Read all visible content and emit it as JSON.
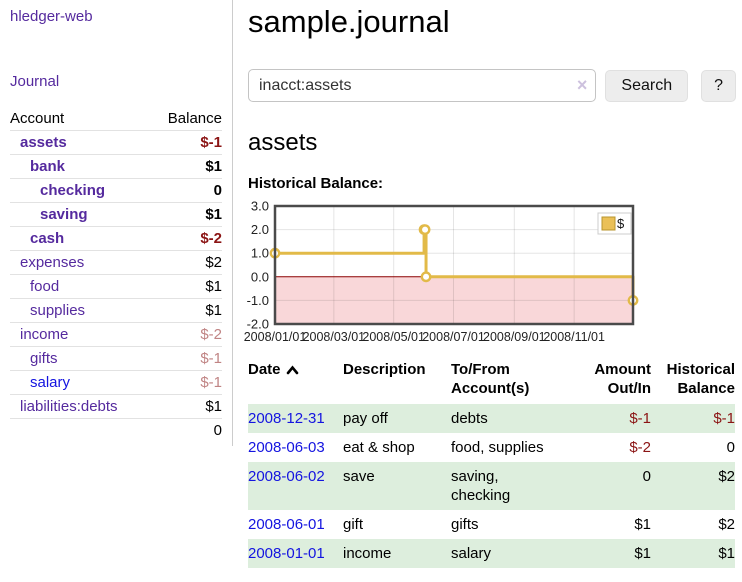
{
  "colors": {
    "link_purple": "#552a9e",
    "link_blue": "#1414e0",
    "negative": "#8b1414",
    "negative_dim": "#c08484",
    "row_stripe_green": "#ddeedd",
    "button_bg": "#ededed"
  },
  "sidebar": {
    "brand": "hledger-web",
    "journal_link": "Journal",
    "accounts_table": {
      "header_account": "Account",
      "header_balance": "Balance",
      "rows": [
        {
          "name": "assets",
          "balance": "$-1"
        },
        {
          "name": "bank",
          "balance": "$1"
        },
        {
          "name": "checking",
          "balance": "0"
        },
        {
          "name": "saving",
          "balance": "$1"
        },
        {
          "name": "cash",
          "balance": "$-2"
        },
        {
          "name": "expenses",
          "balance": "$2"
        },
        {
          "name": "food",
          "balance": "$1"
        },
        {
          "name": "supplies",
          "balance": "$1"
        },
        {
          "name": "income",
          "balance": "$-2"
        },
        {
          "name": "gifts",
          "balance": "$-1"
        },
        {
          "name": "salary",
          "balance": "$-1"
        },
        {
          "name": "liabilities:debts",
          "balance": "$1"
        }
      ],
      "total": "0"
    }
  },
  "main": {
    "title": "sample.journal",
    "search": {
      "value": "inacct:assets",
      "clear_icon": "×",
      "button_label": "Search",
      "help_label": "?"
    },
    "account_heading": "assets",
    "section_label": "Historical Balance:",
    "register": {
      "headers": {
        "date": "Date",
        "description": "Description",
        "tofrom": "To/From Account(s)",
        "amount": "Amount Out/In",
        "balance": "Historical Balance"
      },
      "rows": [
        {
          "date": "2008-12-31",
          "description": "pay off",
          "tofrom": "debts",
          "amount": "$-1",
          "balance": "$-1"
        },
        {
          "date": "2008-06-03",
          "description": "eat & shop",
          "tofrom": "food, supplies",
          "amount": "$-2",
          "balance": "0"
        },
        {
          "date": "2008-06-02",
          "description": "save",
          "tofrom": "saving,\nchecking",
          "amount": "0",
          "balance": "$2"
        },
        {
          "date": "2008-06-01",
          "description": "gift",
          "tofrom": "gifts",
          "amount": "$1",
          "balance": "$2"
        },
        {
          "date": "2008-01-01",
          "description": "income",
          "tofrom": "salary",
          "amount": "$1",
          "balance": "$1"
        }
      ]
    }
  },
  "chart_data": {
    "type": "line",
    "title": "Historical Balance:",
    "step": true,
    "series": [
      {
        "name": "$",
        "points": [
          {
            "date": "2008-01-01",
            "day": 0,
            "y": 1
          },
          {
            "date": "2008-06-01",
            "day": 152,
            "y": 2
          },
          {
            "date": "2008-06-02",
            "day": 153,
            "y": 2
          },
          {
            "date": "2008-06-03",
            "day": 154,
            "y": 0
          },
          {
            "date": "2008-12-31",
            "day": 365,
            "y": -1
          }
        ]
      }
    ],
    "x_ticks": [
      {
        "label": "2008/01/01",
        "day": 0
      },
      {
        "label": "2008/03/01",
        "day": 60
      },
      {
        "label": "2008/05/01",
        "day": 121
      },
      {
        "label": "2008/07/01",
        "day": 182
      },
      {
        "label": "2008/09/01",
        "day": 244
      },
      {
        "label": "2008/11/01",
        "day": 305
      }
    ],
    "x_range_days": [
      0,
      365
    ],
    "y_ticks": [
      3.0,
      2.0,
      1.0,
      0.0,
      -1.0,
      -2.0
    ],
    "ylim": [
      -2,
      3
    ],
    "grid": true,
    "legend": {
      "label": "$",
      "position": "top-right"
    },
    "colors": {
      "line": "#e2ba48",
      "marker_fill": "#ffffff",
      "legend_fill": "#eac057",
      "legend_stroke": "#b8952e",
      "negative_region": "#f9d7d9",
      "zero_line": "#8b0000",
      "border": "#4a4a4a"
    }
  }
}
